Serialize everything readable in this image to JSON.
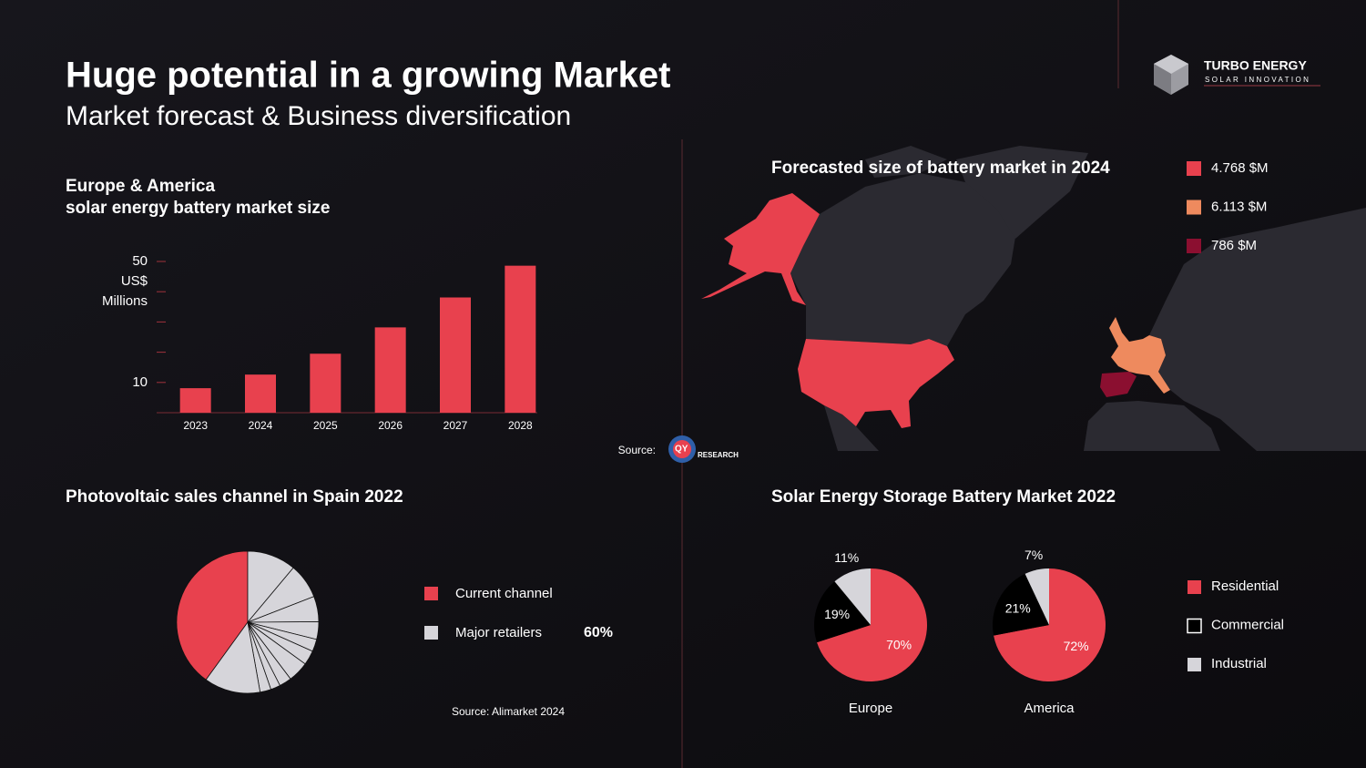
{
  "header": {
    "title": "Huge potential in a growing Market",
    "subtitle": "Market forecast & Business diversification"
  },
  "logo": {
    "name": "TURBO ENERGY",
    "tagline": "SOLAR INNOVATION"
  },
  "source": {
    "label": "Source:",
    "logo_text": [
      "QY",
      "RESEARCH"
    ]
  },
  "chart_data": [
    {
      "type": "bar",
      "title": "Europe & America",
      "subtitle": "solar energy battery market size",
      "ylabel": [
        "US$",
        "Millions"
      ],
      "categories": [
        "2023",
        "2024",
        "2025",
        "2026",
        "2027",
        "2028"
      ],
      "values": [
        8.1,
        12.6,
        19.5,
        28.2,
        38.1,
        48.6
      ],
      "color": "#e8414e",
      "ylim": [
        0,
        50
      ],
      "yticks": [
        10,
        50
      ],
      "yminorticks": [
        20,
        30,
        40
      ]
    },
    {
      "type": "map",
      "title": "Forecasted size of battery market in 2024",
      "values": [
        4768,
        6113,
        786
      ],
      "value_labels": [
        "4.768 $M",
        "6.113 $M",
        "786 $M"
      ],
      "colors": [
        "#e8414e",
        "#ee8a5e",
        "#8b0f30"
      ]
    },
    {
      "type": "pie",
      "title": "Photovoltaic sales channel in Spain 2022",
      "series": [
        {
          "name": "Current channel",
          "color": "#e8414e",
          "values": [
            40
          ]
        },
        {
          "name": "Major retailers",
          "color": "#d6d5da",
          "values": [
            11.1,
            8.0,
            5.8,
            4.0,
            2.8,
            3.3,
            4.7,
            2.8,
            2.2,
            2.5,
            12.8
          ],
          "value_label": "60%"
        }
      ],
      "source": "Source: Alimarket 2024"
    },
    {
      "type": "pie",
      "title": "Solar Energy Storage Battery Market 2022",
      "categories": [
        "Residential",
        "Commercial",
        "Industrial"
      ],
      "colors": [
        "#e8414e",
        "#000000",
        "#d6d5da"
      ],
      "series": [
        {
          "name": "Europe",
          "values": [
            70,
            19,
            11
          ],
          "value_labels": [
            "70%",
            "19%",
            "11%"
          ]
        },
        {
          "name": "America",
          "values": [
            72,
            21,
            7
          ],
          "value_labels": [
            "72%",
            "21%",
            "7%"
          ]
        }
      ]
    }
  ]
}
